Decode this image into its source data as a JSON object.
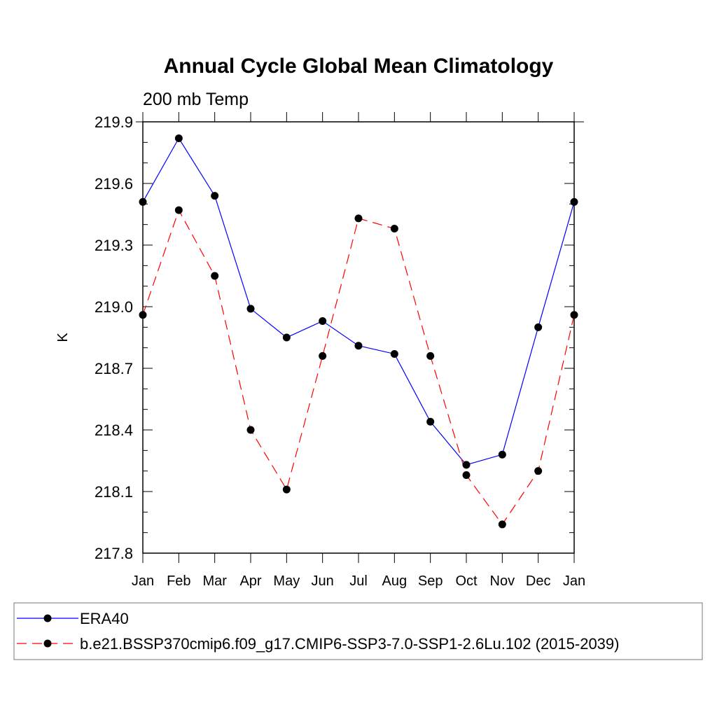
{
  "chart_data": {
    "type": "line",
    "title": "Annual Cycle Global Mean Climatology",
    "subtitle": "200 mb Temp",
    "xlabel": "",
    "ylabel": "K",
    "categories": [
      "Jan",
      "Feb",
      "Mar",
      "Apr",
      "May",
      "Jun",
      "Jul",
      "Aug",
      "Sep",
      "Oct",
      "Nov",
      "Dec",
      "Jan"
    ],
    "ylim": [
      217.8,
      219.9
    ],
    "yticks": [
      "217.8",
      "218.1",
      "218.4",
      "218.7",
      "219.0",
      "219.3",
      "219.6",
      "219.9"
    ],
    "series": [
      {
        "name": "ERA40",
        "color": "#0000ff",
        "dash": "solid",
        "values": [
          219.51,
          219.82,
          219.54,
          218.99,
          218.85,
          218.93,
          218.81,
          218.77,
          218.44,
          218.23,
          218.28,
          218.9,
          219.51
        ]
      },
      {
        "name": "b.e21.BSSP370cmip6.f09_g17.CMIP6-SSP3-7.0-SSP1-2.6Lu.102 (2015-2039)",
        "color": "#ff0000",
        "dash": "dashed",
        "values": [
          218.96,
          219.47,
          219.15,
          218.4,
          218.11,
          218.76,
          219.43,
          219.38,
          218.76,
          218.18,
          217.94,
          218.2,
          218.96
        ]
      }
    ],
    "legend_position": "bottom"
  }
}
